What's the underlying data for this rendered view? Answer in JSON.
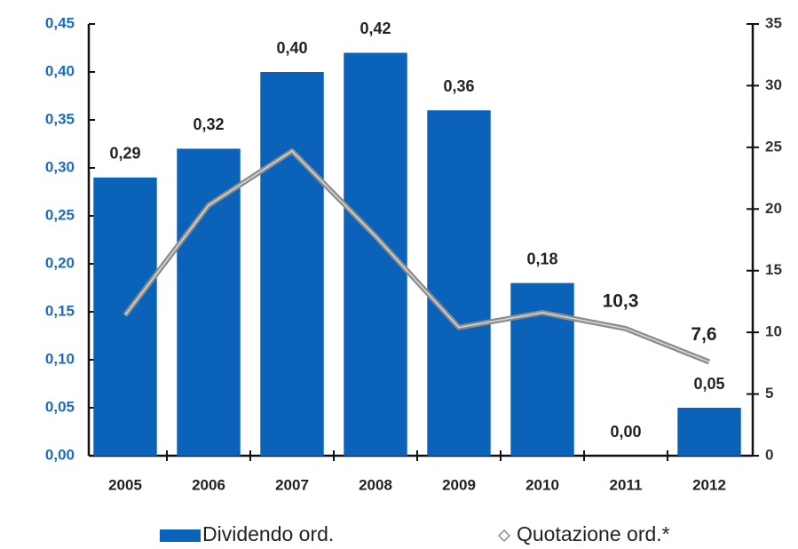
{
  "chart_data": {
    "type": "bar_line",
    "categories": [
      "2005",
      "2006",
      "2007",
      "2008",
      "2009",
      "2010",
      "2011",
      "2012"
    ],
    "series": [
      {
        "name": "Dividendo ord.",
        "type": "bar",
        "color": "#0a63b8",
        "axis": "y",
        "values": [
          0.29,
          0.32,
          0.4,
          0.42,
          0.36,
          0.18,
          0.0,
          0.05
        ],
        "value_labels": [
          "0,29",
          "0,32",
          "0,40",
          "0,42",
          "0,36",
          "0,18",
          "0,00",
          "0,05"
        ]
      },
      {
        "name": "Quotazione ord.*",
        "type": "line",
        "color": "#8c8c8c",
        "axis": "y2",
        "values": [
          11.4,
          20.3,
          24.7,
          17.8,
          10.4,
          11.6,
          10.3,
          7.6
        ],
        "value_labels": [
          null,
          null,
          null,
          null,
          null,
          null,
          "10,3",
          "7,6"
        ]
      }
    ],
    "ylim": [
      0,
      0.45
    ],
    "yticks": [
      {
        "value": 0,
        "label": "0,00"
      },
      {
        "value": 0.05,
        "label": "0,05"
      },
      {
        "value": 0.1,
        "label": "0,10"
      },
      {
        "value": 0.15,
        "label": "0,15"
      },
      {
        "value": 0.2,
        "label": "0,20"
      },
      {
        "value": 0.25,
        "label": "0,25"
      },
      {
        "value": 0.3,
        "label": "0,30"
      },
      {
        "value": 0.35,
        "label": "0,35"
      },
      {
        "value": 0.4,
        "label": "0,40"
      },
      {
        "value": 0.45,
        "label": "0,45"
      }
    ],
    "y2lim": [
      0,
      35
    ],
    "y2ticks": [
      0,
      5,
      10,
      15,
      20,
      25,
      30,
      35
    ],
    "grid": false
  }
}
